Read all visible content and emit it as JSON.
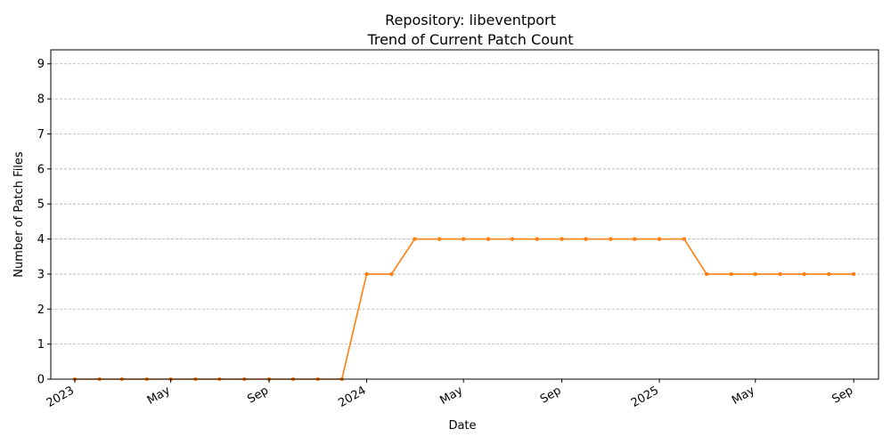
{
  "chart_data": {
    "type": "line",
    "title": "Repository: libeventport",
    "subtitle": "Trend of Current Patch Count",
    "xlabel": "Date",
    "ylabel": "Number of Patch Files",
    "ylim": [
      0,
      9.4
    ],
    "xlim": [
      "2022-12-02",
      "2025-10-02"
    ],
    "y_ticks": [
      0,
      1,
      2,
      3,
      4,
      5,
      6,
      7,
      8,
      9
    ],
    "x_ticks": [
      {
        "date": "2023-01-01",
        "label": "2023"
      },
      {
        "date": "2023-05-01",
        "label": "May"
      },
      {
        "date": "2023-09-01",
        "label": "Sep"
      },
      {
        "date": "2024-01-01",
        "label": "2024"
      },
      {
        "date": "2024-05-01",
        "label": "May"
      },
      {
        "date": "2024-09-01",
        "label": "Sep"
      },
      {
        "date": "2025-01-01",
        "label": "2025"
      },
      {
        "date": "2025-05-01",
        "label": "May"
      },
      {
        "date": "2025-09-01",
        "label": "Sep"
      }
    ],
    "grid": "horizontal",
    "series": [
      {
        "color": "#ff7f0e",
        "x": [
          "2023-01-01",
          "2023-02-01",
          "2023-03-01",
          "2023-04-01",
          "2023-05-01",
          "2023-06-01",
          "2023-07-01",
          "2023-08-01",
          "2023-09-01",
          "2023-10-01",
          "2023-11-01",
          "2023-12-01",
          "2024-01-01",
          "2024-02-01",
          "2024-03-01",
          "2024-04-01",
          "2024-05-01",
          "2024-06-01",
          "2024-07-01",
          "2024-08-01",
          "2024-09-01",
          "2024-10-01",
          "2024-11-01",
          "2024-12-01",
          "2025-01-01",
          "2025-02-01",
          "2025-03-01",
          "2025-04-01",
          "2025-05-01",
          "2025-06-01",
          "2025-07-01",
          "2025-08-01",
          "2025-09-01"
        ],
        "values": [
          0,
          0,
          0,
          0,
          0,
          0,
          0,
          0,
          0,
          0,
          0,
          0,
          3,
          3,
          4,
          4,
          4,
          4,
          4,
          4,
          4,
          4,
          4,
          4,
          4,
          4,
          3,
          3,
          3,
          3,
          3,
          3,
          3
        ]
      }
    ]
  }
}
